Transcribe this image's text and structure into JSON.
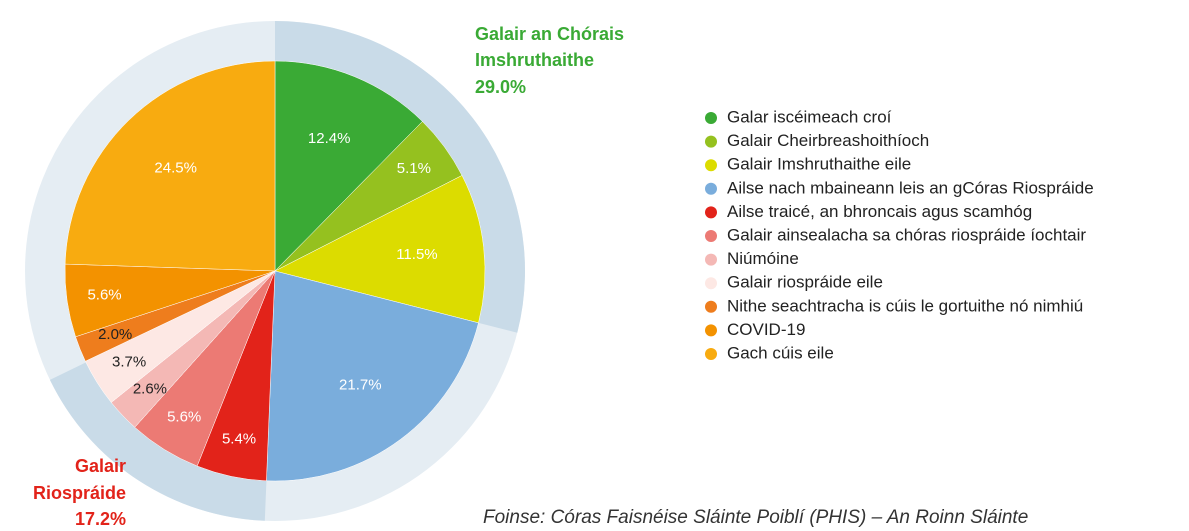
{
  "chart_data": {
    "type": "pie",
    "categories": [
      "Galar iscéimeach croí",
      "Galair Cheirbreashoithíoch",
      "Galair Imshruthaithe eile",
      "Ailse nach mbaineann leis an gCóras Riospráide",
      "Ailse traicé, an bhroncais agus scamhóg",
      "Galair ainsealacha sa chóras riospráide íochtair",
      "Niúmóine",
      "Galair riospráide eile",
      "Nithe seachtracha is cúis le gortuithe nó nimhiú",
      "COVID-19",
      "Gach cúis eile"
    ],
    "values": [
      12.4,
      5.1,
      11.5,
      21.7,
      5.4,
      5.6,
      2.6,
      3.7,
      2.0,
      5.6,
      24.5
    ],
    "value_labels": [
      "12.4%",
      "5.1%",
      "11.5%",
      "21.7%",
      "5.4%",
      "5.6%",
      "2.6%",
      "3.7%",
      "2.0%",
      "5.6%",
      "24.5%"
    ],
    "colors": [
      "#3aaa35",
      "#95c11f",
      "#dcdc00",
      "#7aaddc",
      "#e2231a",
      "#ec7a74",
      "#f4b8b5",
      "#fde8e4",
      "#ee7d1d",
      "#f39200",
      "#f8ab10"
    ],
    "groups": [
      {
        "name": "Galair an Chórais Imshruthaithe",
        "value": 29.0,
        "value_label": "29.0%",
        "color": "#3aaa35"
      },
      {
        "name": "Galair Riospráide",
        "value": 17.2,
        "value_label": "17.2%",
        "color": "#e2231a"
      }
    ],
    "source": "Foinse: Córas Faisnéise Sláinte Poiblí (PHIS) – An Roinn Sláinte"
  }
}
